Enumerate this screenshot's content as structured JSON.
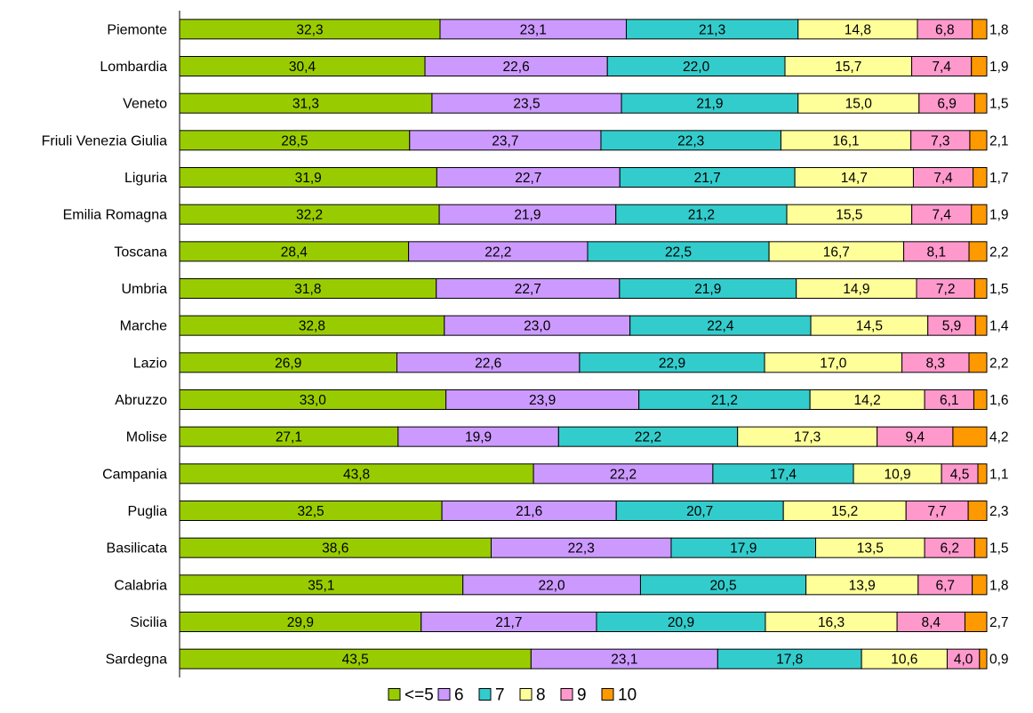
{
  "chart_data": {
    "type": "bar",
    "orientation": "horizontal",
    "stacked": true,
    "normalized_percent": true,
    "xlim": [
      0,
      100
    ],
    "grid": false,
    "legend_position": "bottom",
    "categories": [
      "Piemonte",
      "Lombardia",
      "Veneto",
      "Friuli Venezia Giulia",
      "Liguria",
      "Emilia Romagna",
      "Toscana",
      "Umbria",
      "Marche",
      "Lazio",
      "Abruzzo",
      "Molise",
      "Campania",
      "Puglia",
      "Basilicata",
      "Calabria",
      "Sicilia",
      "Sardegna"
    ],
    "series": [
      {
        "name": "<=5",
        "color": "#99cc00",
        "values": [
          32.3,
          30.4,
          31.3,
          28.5,
          31.9,
          32.2,
          28.4,
          31.8,
          32.8,
          26.9,
          33.0,
          27.1,
          43.8,
          32.5,
          38.6,
          35.1,
          29.9,
          43.5
        ],
        "labels": [
          "32,3",
          "30,4",
          "31,3",
          "28,5",
          "31,9",
          "32,2",
          "28,4",
          "31,8",
          "32,8",
          "26,9",
          "33,0",
          "27,1",
          "43,8",
          "32,5",
          "38,6",
          "35,1",
          "29,9",
          "43,5"
        ]
      },
      {
        "name": "6",
        "color": "#cc99ff",
        "values": [
          23.1,
          22.6,
          23.5,
          23.7,
          22.7,
          21.9,
          22.2,
          22.7,
          23.0,
          22.6,
          23.9,
          19.9,
          22.2,
          21.6,
          22.3,
          22.0,
          21.7,
          23.1
        ],
        "labels": [
          "23,1",
          "22,6",
          "23,5",
          "23,7",
          "22,7",
          "21,9",
          "22,2",
          "22,7",
          "23,0",
          "22,6",
          "23,9",
          "19,9",
          "22,2",
          "21,6",
          "22,3",
          "22,0",
          "21,7",
          "23,1"
        ]
      },
      {
        "name": "7",
        "color": "#33cccc",
        "values": [
          21.3,
          22.0,
          21.9,
          22.3,
          21.7,
          21.2,
          22.5,
          21.9,
          22.4,
          22.9,
          21.2,
          22.2,
          17.4,
          20.7,
          17.9,
          20.5,
          20.9,
          17.8
        ],
        "labels": [
          "21,3",
          "22,0",
          "21,9",
          "22,3",
          "21,7",
          "21,2",
          "22,5",
          "21,9",
          "22,4",
          "22,9",
          "21,2",
          "22,2",
          "17,4",
          "20,7",
          "17,9",
          "20,5",
          "20,9",
          "17,8"
        ]
      },
      {
        "name": "8",
        "color": "#ffff99",
        "values": [
          14.8,
          15.7,
          15.0,
          16.1,
          14.7,
          15.5,
          16.7,
          14.9,
          14.5,
          17.0,
          14.2,
          17.3,
          10.9,
          15.2,
          13.5,
          13.9,
          16.3,
          10.6
        ],
        "labels": [
          "14,8",
          "15,7",
          "15,0",
          "16,1",
          "14,7",
          "15,5",
          "16,7",
          "14,9",
          "14,5",
          "17,0",
          "14,2",
          "17,3",
          "10,9",
          "15,2",
          "13,5",
          "13,9",
          "16,3",
          "10,6"
        ]
      },
      {
        "name": "9",
        "color": "#ff99cc",
        "values": [
          6.8,
          7.4,
          6.9,
          7.3,
          7.4,
          7.4,
          8.1,
          7.2,
          5.9,
          8.3,
          6.1,
          9.4,
          4.5,
          7.7,
          6.2,
          6.7,
          8.4,
          4.0
        ],
        "labels": [
          "6,8",
          "7,4",
          "6,9",
          "7,3",
          "7,4",
          "7,4",
          "8,1",
          "7,2",
          "5,9",
          "8,3",
          "6,1",
          "9,4",
          "4,5",
          "7,7",
          "6,2",
          "6,7",
          "8,4",
          "4,0"
        ]
      },
      {
        "name": "10",
        "color": "#ff9900",
        "values": [
          1.8,
          1.9,
          1.5,
          2.1,
          1.7,
          1.9,
          2.2,
          1.5,
          1.4,
          2.2,
          1.6,
          4.2,
          1.1,
          2.3,
          1.5,
          1.8,
          2.7,
          0.9
        ],
        "labels": [
          "1,8",
          "1,9",
          "1,5",
          "2,1",
          "1,7",
          "1,9",
          "2,2",
          "1,5",
          "1,4",
          "2,2",
          "1,6",
          "4,2",
          "1,1",
          "2,3",
          "1,5",
          "1,8",
          "2,7",
          "0,9"
        ]
      }
    ]
  }
}
